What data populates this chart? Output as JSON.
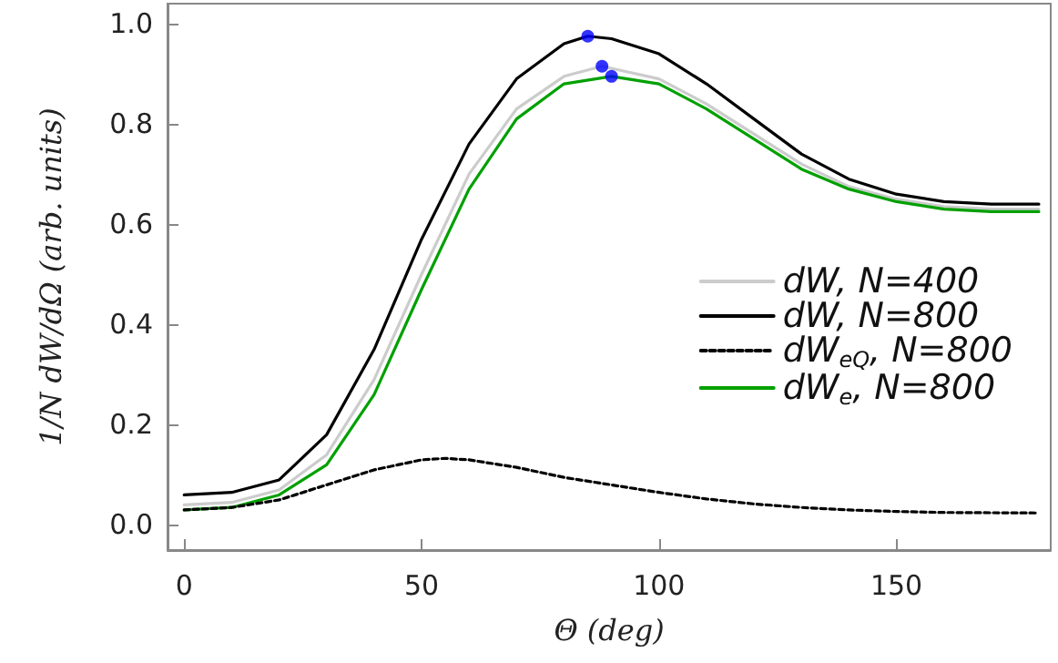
{
  "chart_data": {
    "type": "line",
    "xlabel": "Θ (deg)",
    "ylabel": "1/N dW/dΩ (arb. units)",
    "xlim": [
      -3.5,
      182.5
    ],
    "ylim": [
      -0.05,
      1.04
    ],
    "xticks": [
      0,
      50,
      100,
      150
    ],
    "yticks": [
      {
        "value": 0,
        "label": "0.0"
      },
      {
        "value": 0.2,
        "label": "0.2"
      },
      {
        "value": 0.4,
        "label": "0.4"
      },
      {
        "value": 0.6,
        "label": "0.6"
      },
      {
        "value": 0.8,
        "label": "0.8"
      },
      {
        "value": 1,
        "label": "1.0"
      }
    ],
    "grid": false,
    "legend": "right",
    "marker": "none",
    "x": [
      0,
      10,
      20,
      30,
      40,
      50,
      60,
      70,
      80,
      85,
      90,
      100,
      110,
      120,
      130,
      140,
      150,
      160,
      170,
      180
    ],
    "series": [
      {
        "name": "dW, N=400",
        "color": "#cccccc",
        "line_style": "solid",
        "x": [
          0,
          10,
          20,
          30,
          40,
          50,
          60,
          70,
          80,
          88,
          100,
          110,
          120,
          130,
          140,
          150,
          160,
          170,
          180
        ],
        "values": [
          0.04,
          0.045,
          0.07,
          0.14,
          0.29,
          0.5,
          0.7,
          0.83,
          0.895,
          0.915,
          0.89,
          0.84,
          0.78,
          0.72,
          0.675,
          0.65,
          0.635,
          0.63,
          0.63
        ]
      },
      {
        "name": "dW, N=800",
        "color": "#000000",
        "line_style": "solid",
        "values": [
          0.06,
          0.065,
          0.09,
          0.18,
          0.35,
          0.57,
          0.76,
          0.89,
          0.96,
          0.975,
          0.97,
          0.94,
          0.88,
          0.81,
          0.74,
          0.69,
          0.66,
          0.645,
          0.64,
          0.64
        ]
      },
      {
        "name": "dW$_{eQ}$, N=800",
        "color": "#000000",
        "line_style": "dashed",
        "x": [
          0,
          10,
          20,
          30,
          40,
          50,
          55,
          60,
          70,
          80,
          90,
          100,
          110,
          120,
          130,
          140,
          150,
          160,
          180
        ],
        "values": [
          0.03,
          0.035,
          0.05,
          0.08,
          0.11,
          0.13,
          0.133,
          0.13,
          0.115,
          0.095,
          0.08,
          0.065,
          0.052,
          0.042,
          0.035,
          0.03,
          0.027,
          0.025,
          0.024
        ]
      },
      {
        "name": "dW$_{e}$, N=800",
        "color": "#00a000",
        "line_style": "solid",
        "x": [
          0,
          10,
          20,
          30,
          40,
          50,
          60,
          70,
          80,
          90,
          100,
          110,
          120,
          130,
          140,
          150,
          160,
          170,
          180
        ],
        "values": [
          0.03,
          0.035,
          0.06,
          0.12,
          0.26,
          0.47,
          0.67,
          0.81,
          0.88,
          0.895,
          0.88,
          0.83,
          0.77,
          0.71,
          0.67,
          0.645,
          0.63,
          0.625,
          0.625
        ]
      },
      {
        "type": "scatter",
        "marker": "circle",
        "color": "#0000ff",
        "x": [
          85,
          88,
          90
        ],
        "values": [
          0.975,
          0.915,
          0.895
        ]
      }
    ]
  }
}
